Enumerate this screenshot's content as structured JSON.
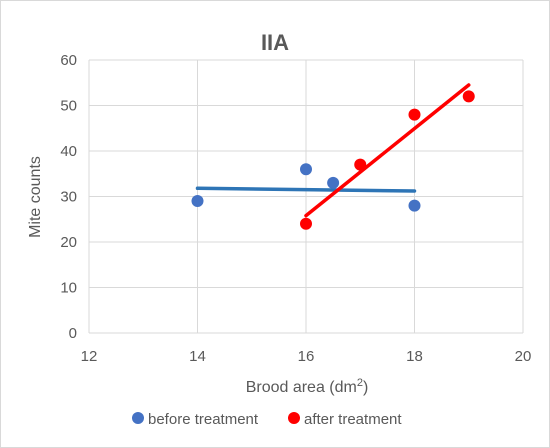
{
  "chart_data": {
    "type": "scatter",
    "title": "IIA",
    "xlabel": "Brood area (dm",
    "xlabel_sup": "2",
    "xlabel_close": ")",
    "ylabel": "Mite counts",
    "xlim": [
      12,
      20
    ],
    "ylim": [
      0,
      60
    ],
    "xticks": [
      "12",
      "14",
      "16",
      "18",
      "20"
    ],
    "yticks": [
      "0",
      "10",
      "20",
      "30",
      "40",
      "50",
      "60"
    ],
    "grid": true,
    "legend_position": "bottom",
    "series": [
      {
        "name": "before treatment",
        "color": "#4472c4",
        "trend_color": "#2e75b6",
        "points": [
          {
            "x": 14,
            "y": 29
          },
          {
            "x": 16,
            "y": 36
          },
          {
            "x": 16.5,
            "y": 33
          },
          {
            "x": 18,
            "y": 28
          }
        ],
        "trendline": [
          {
            "x": 14,
            "y": 31.8
          },
          {
            "x": 18,
            "y": 31.2
          }
        ]
      },
      {
        "name": "after treatment",
        "color": "#ff0000",
        "trend_color": "#ff0000",
        "points": [
          {
            "x": 16,
            "y": 24
          },
          {
            "x": 17,
            "y": 37
          },
          {
            "x": 18,
            "y": 48
          },
          {
            "x": 19,
            "y": 52
          }
        ],
        "trendline": [
          {
            "x": 16,
            "y": 25.8
          },
          {
            "x": 19,
            "y": 54.5
          }
        ]
      }
    ]
  }
}
